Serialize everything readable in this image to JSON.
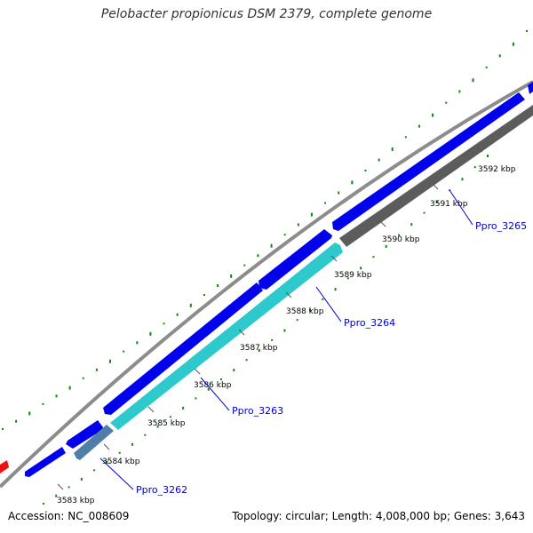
{
  "title": "Pelobacter propionicus DSM 2379, complete genome",
  "accession_text": "Accession: NC_008609",
  "topology_text": "Topology: circular; Length: 4,008,000 bp; Genes: 3,643",
  "colors": {
    "backbone": "#8c8c8c",
    "forward_gene": "#0000ee",
    "reverse_gene_dark": "#5c5c5c",
    "reverse_gene_cyan": "#2ec9cc",
    "reverse_gene_steel": "#4f7fa8",
    "red_gene": "#ee1111",
    "gc_ticks": "#118811",
    "label_text": "#0000cc",
    "leader_line": "#0000cc"
  },
  "scale_ticks": [
    {
      "label": "3583 kbp"
    },
    {
      "label": "3584 kbp"
    },
    {
      "label": "3585 kbp"
    },
    {
      "label": "3586 kbp"
    },
    {
      "label": "3587 kbp"
    },
    {
      "label": "3588 kbp"
    },
    {
      "label": "3589 kbp"
    },
    {
      "label": "3590 kbp"
    },
    {
      "label": "3591 kbp"
    },
    {
      "label": "3592 kbp"
    }
  ],
  "gene_labels": [
    {
      "text": "Ppro_3262"
    },
    {
      "text": "Ppro_3263"
    },
    {
      "text": "Ppro_3264"
    },
    {
      "text": "Ppro_3265"
    }
  ]
}
